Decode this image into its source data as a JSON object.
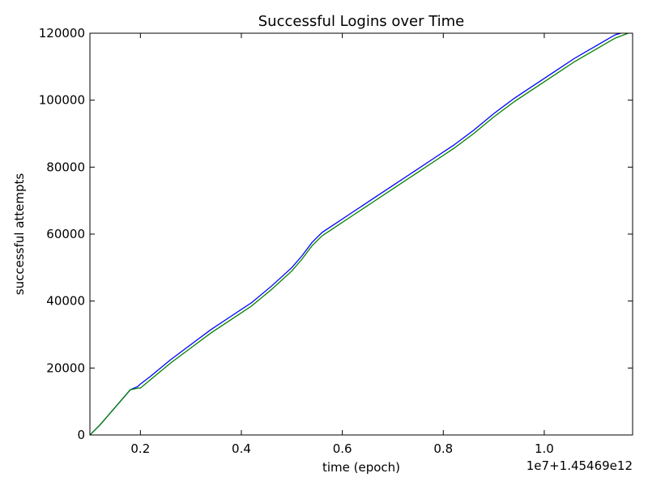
{
  "chart_data": {
    "type": "line",
    "title": "Successful Logins over Time",
    "xlabel": "time (epoch)",
    "ylabel": "successful attempts",
    "x_offset_label": "1e7+1.45469e12",
    "xlim": [
      0.1,
      1.175
    ],
    "ylim": [
      0,
      120000
    ],
    "x_ticks": [
      0.2,
      0.4,
      0.6,
      0.8,
      1.0
    ],
    "x_tick_labels": [
      "0.2",
      "0.4",
      "0.6",
      "0.8",
      "1.0"
    ],
    "y_ticks": [
      0,
      20000,
      40000,
      60000,
      80000,
      100000,
      120000
    ],
    "y_tick_labels": [
      "0",
      "20000",
      "40000",
      "60000",
      "80000",
      "100000",
      "120000"
    ],
    "grid": false,
    "legend": false,
    "series": [
      {
        "color": "#0000ff",
        "x": [
          0.1,
          0.12,
          0.14,
          0.16,
          0.18,
          0.195,
          0.2,
          0.22,
          0.26,
          0.3,
          0.34,
          0.38,
          0.42,
          0.46,
          0.5,
          0.52,
          0.54,
          0.56,
          0.58,
          0.62,
          0.66,
          0.7,
          0.74,
          0.78,
          0.82,
          0.86,
          0.9,
          0.94,
          0.98,
          1.02,
          1.06,
          1.1,
          1.14,
          1.175
        ],
        "y": [
          0,
          3000,
          6500,
          10000,
          13500,
          14500,
          15200,
          17500,
          22500,
          27000,
          31500,
          35500,
          39500,
          44500,
          50000,
          53500,
          57500,
          60500,
          62500,
          66500,
          70500,
          74500,
          78500,
          82500,
          86500,
          91000,
          96000,
          100500,
          104500,
          108500,
          112500,
          116000,
          119500,
          121000
        ]
      },
      {
        "color": "#008000",
        "x": [
          0.1,
          0.12,
          0.14,
          0.16,
          0.18,
          0.195,
          0.2,
          0.22,
          0.26,
          0.3,
          0.34,
          0.38,
          0.42,
          0.46,
          0.5,
          0.52,
          0.54,
          0.56,
          0.58,
          0.62,
          0.66,
          0.7,
          0.74,
          0.78,
          0.82,
          0.86,
          0.9,
          0.94,
          0.98,
          1.02,
          1.06,
          1.1,
          1.14,
          1.175
        ],
        "y": [
          0,
          3000,
          6500,
          10000,
          13500,
          14000,
          14000,
          16500,
          21500,
          26000,
          30500,
          34500,
          38500,
          43500,
          49000,
          52500,
          56500,
          59500,
          61500,
          65500,
          69500,
          73500,
          77500,
          81500,
          85500,
          90000,
          95000,
          99500,
          103500,
          107500,
          111500,
          115000,
          118500,
          120500
        ]
      }
    ]
  }
}
